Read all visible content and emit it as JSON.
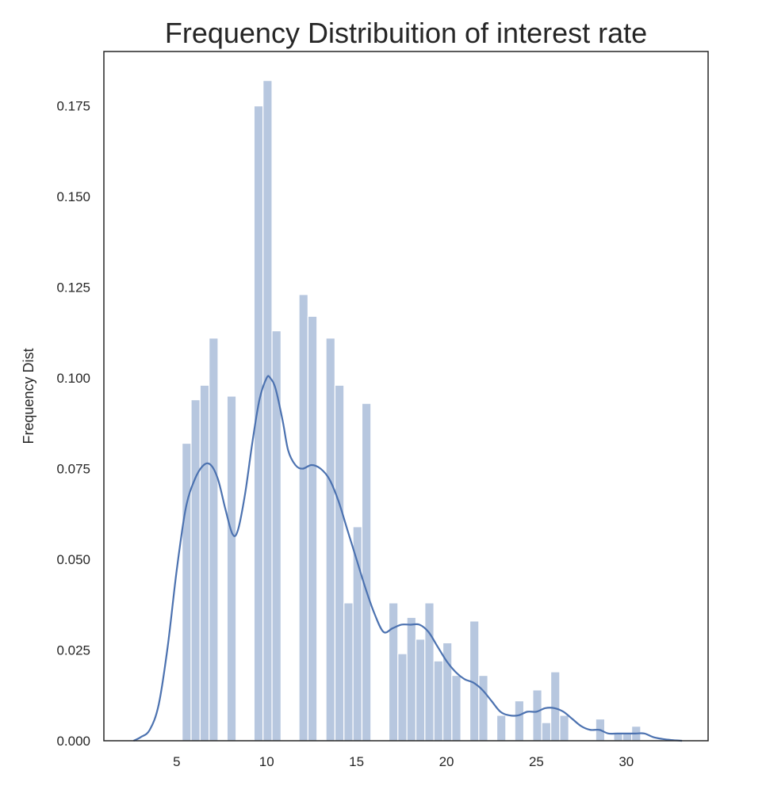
{
  "chart_data": {
    "type": "bar",
    "title": "Frequency Distribuition of interest rate",
    "xlabel": "",
    "ylabel": "Frequency Dist",
    "xlim": [
      0.95,
      34.55
    ],
    "ylim": [
      0.0,
      0.19
    ],
    "xticks": [
      "5",
      "10",
      "15",
      "20",
      "25",
      "30"
    ],
    "yticks": [
      "0.000",
      "0.025",
      "0.050",
      "0.075",
      "0.100",
      "0.125",
      "0.150",
      "0.175"
    ],
    "grid": false,
    "bar_color": "#4c72b0",
    "bar_opacity": 0.4,
    "line_color": "#4c72b0",
    "histogram": {
      "bin_width": 0.5,
      "bins": [
        {
          "x0": 5.3,
          "value": 0.082
        },
        {
          "x0": 5.8,
          "value": 0.094
        },
        {
          "x0": 6.3,
          "value": 0.098
        },
        {
          "x0": 6.8,
          "value": 0.111
        },
        {
          "x0": 7.8,
          "value": 0.095
        },
        {
          "x0": 9.3,
          "value": 0.175
        },
        {
          "x0": 9.8,
          "value": 0.182
        },
        {
          "x0": 10.3,
          "value": 0.113
        },
        {
          "x0": 11.8,
          "value": 0.123
        },
        {
          "x0": 12.3,
          "value": 0.117
        },
        {
          "x0": 13.3,
          "value": 0.111
        },
        {
          "x0": 13.8,
          "value": 0.098
        },
        {
          "x0": 14.3,
          "value": 0.038
        },
        {
          "x0": 14.8,
          "value": 0.059
        },
        {
          "x0": 15.3,
          "value": 0.093
        },
        {
          "x0": 16.8,
          "value": 0.038
        },
        {
          "x0": 17.3,
          "value": 0.024
        },
        {
          "x0": 17.8,
          "value": 0.034
        },
        {
          "x0": 18.3,
          "value": 0.028
        },
        {
          "x0": 18.8,
          "value": 0.038
        },
        {
          "x0": 19.3,
          "value": 0.022
        },
        {
          "x0": 19.8,
          "value": 0.027
        },
        {
          "x0": 20.3,
          "value": 0.018
        },
        {
          "x0": 21.3,
          "value": 0.033
        },
        {
          "x0": 21.8,
          "value": 0.018
        },
        {
          "x0": 22.8,
          "value": 0.007
        },
        {
          "x0": 23.8,
          "value": 0.011
        },
        {
          "x0": 24.8,
          "value": 0.014
        },
        {
          "x0": 25.3,
          "value": 0.005
        },
        {
          "x0": 25.8,
          "value": 0.019
        },
        {
          "x0": 26.3,
          "value": 0.007
        },
        {
          "x0": 28.3,
          "value": 0.006
        },
        {
          "x0": 29.3,
          "value": 0.002
        },
        {
          "x0": 29.8,
          "value": 0.002
        },
        {
          "x0": 30.3,
          "value": 0.004
        }
      ]
    },
    "kde": {
      "x": [
        2.6,
        3.0,
        3.5,
        4.0,
        4.5,
        5.0,
        5.5,
        6.0,
        6.5,
        6.9,
        7.3,
        7.7,
        8.1,
        8.4,
        8.8,
        9.2,
        9.6,
        10.0,
        10.2,
        10.5,
        10.9,
        11.2,
        11.6,
        12.0,
        12.5,
        13.0,
        13.5,
        14.0,
        14.5,
        15.0,
        15.5,
        16.0,
        16.5,
        17.0,
        17.5,
        18.0,
        18.5,
        19.0,
        19.5,
        20.0,
        20.5,
        21.0,
        21.5,
        22.0,
        22.5,
        23.0,
        23.5,
        24.0,
        24.5,
        25.0,
        25.5,
        26.0,
        26.5,
        27.0,
        27.5,
        28.0,
        28.5,
        29.0,
        29.5,
        30.0,
        30.5,
        31.0,
        31.5,
        32.0,
        32.5,
        33.1
      ],
      "y": [
        0.0,
        0.001,
        0.003,
        0.01,
        0.026,
        0.047,
        0.064,
        0.072,
        0.076,
        0.076,
        0.072,
        0.064,
        0.057,
        0.058,
        0.068,
        0.082,
        0.094,
        0.1,
        0.1,
        0.097,
        0.088,
        0.08,
        0.076,
        0.075,
        0.076,
        0.075,
        0.072,
        0.066,
        0.058,
        0.05,
        0.042,
        0.035,
        0.03,
        0.031,
        0.032,
        0.032,
        0.032,
        0.03,
        0.026,
        0.022,
        0.019,
        0.017,
        0.016,
        0.014,
        0.011,
        0.008,
        0.007,
        0.007,
        0.008,
        0.008,
        0.009,
        0.009,
        0.008,
        0.006,
        0.004,
        0.003,
        0.003,
        0.002,
        0.002,
        0.002,
        0.002,
        0.002,
        0.001,
        0.0005,
        0.0002,
        0.0
      ]
    }
  }
}
